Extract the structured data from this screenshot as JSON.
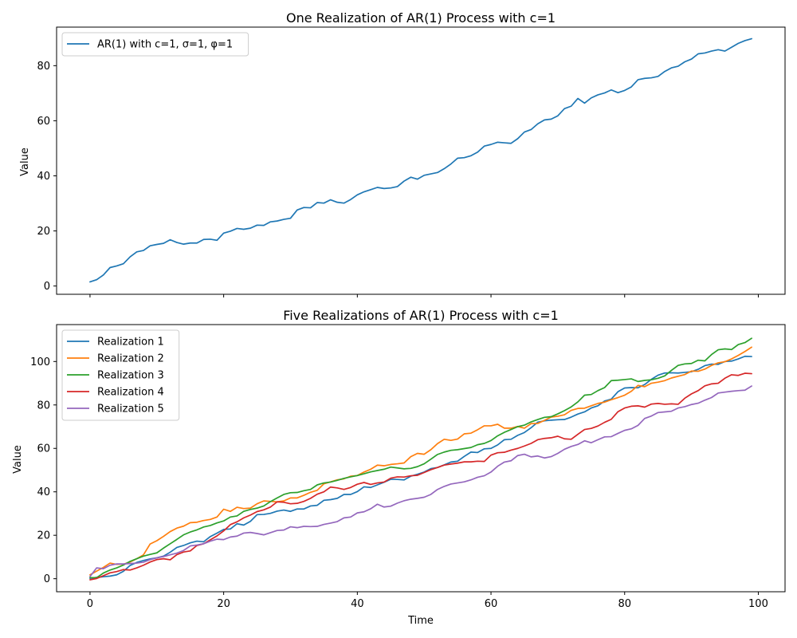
{
  "chart_data": [
    {
      "type": "line",
      "title": "One Realization of AR(1) Process with c=1",
      "xlabel": "",
      "ylabel": "Value",
      "xlim": [
        -5,
        104
      ],
      "ylim": [
        -3,
        94
      ],
      "xticks": [
        0,
        20,
        40,
        60,
        80,
        100
      ],
      "xtick_labels_visible": false,
      "yticks": [
        0,
        20,
        40,
        60,
        80
      ],
      "grid": false,
      "legend": "top-left",
      "series": [
        {
          "name": "AR(1) with c=1, σ=1, φ=1",
          "color": "#1f77b4",
          "x_start": 0,
          "values": [
            1.5,
            2.3,
            4.0,
            6.7,
            7.3,
            8.1,
            10.6,
            12.4,
            12.9,
            14.6,
            15.1,
            15.5,
            16.8,
            15.8,
            15.2,
            15.6,
            15.6,
            16.9,
            17.0,
            16.6,
            19.2,
            19.9,
            20.9,
            20.6,
            21.0,
            22.1,
            22.0,
            23.3,
            23.6,
            24.2,
            24.6,
            27.6,
            28.5,
            28.4,
            30.3,
            30.1,
            31.3,
            30.4,
            30.1,
            31.4,
            33.1,
            34.2,
            35.0,
            35.8,
            35.4,
            35.6,
            36.1,
            38.1,
            39.5,
            38.8,
            40.2,
            40.7,
            41.2,
            42.6,
            44.3,
            46.4,
            46.6,
            47.3,
            48.6,
            50.8,
            51.4,
            52.2,
            52.0,
            51.8,
            53.5,
            55.9,
            56.8,
            58.9,
            60.3,
            60.6,
            61.8,
            64.4,
            65.3,
            68.1,
            66.4,
            68.3,
            69.4,
            70.1,
            71.2,
            70.2,
            71.0,
            72.3,
            74.9,
            75.4,
            75.6,
            76.1,
            77.9,
            79.2,
            79.8,
            81.4,
            82.4,
            84.3,
            84.6,
            85.3,
            85.8,
            85.3,
            86.7,
            88.1,
            89.1,
            89.8
          ]
        }
      ]
    },
    {
      "type": "line",
      "title": "Five Realizations of AR(1) Process with c=1",
      "xlabel": "Time",
      "ylabel": "Value",
      "xlim": [
        -5,
        104
      ],
      "ylim": [
        -6,
        117
      ],
      "xticks": [
        0,
        20,
        40,
        60,
        80,
        100
      ],
      "yticks": [
        0,
        20,
        40,
        60,
        80,
        100
      ],
      "grid": false,
      "legend": "top-left",
      "series": [
        {
          "name": "Realization 1",
          "color": "#1f77b4",
          "x_start": 0,
          "values": [
            0.2,
            0.6,
            0.9,
            1.2,
            1.8,
            3.4,
            6.1,
            7.5,
            8.4,
            9.1,
            9.6,
            10.4,
            12.2,
            14.4,
            15.3,
            16.5,
            17.3,
            17.0,
            19.4,
            21.0,
            22.7,
            22.9,
            25.3,
            24.7,
            26.4,
            29.5,
            29.6,
            30.1,
            31.1,
            31.6,
            31.0,
            32.1,
            32.1,
            33.5,
            33.8,
            36.1,
            36.4,
            37.0,
            38.8,
            38.8,
            40.1,
            42.3,
            42.0,
            43.2,
            44.4,
            45.8,
            45.7,
            45.5,
            47.2,
            48.1,
            49.1,
            50.7,
            51.2,
            52.4,
            53.7,
            54.1,
            56.3,
            58.3,
            58.1,
            59.8,
            60.0,
            61.6,
            64.0,
            64.2,
            66.0,
            67.3,
            69.5,
            72.1,
            72.7,
            73.0,
            73.2,
            73.3,
            74.4,
            75.8,
            76.8,
            78.6,
            79.6,
            81.8,
            82.7,
            86.1,
            87.8,
            88.0,
            87.9,
            89.4,
            91.8,
            93.7,
            94.7,
            94.8,
            94.7,
            95.0,
            95.3,
            96.4,
            98.1,
            98.8,
            98.7,
            100.0,
            100.2,
            101.2,
            102.4,
            102.3
          ]
        },
        {
          "name": "Realization 2",
          "color": "#ff7f0e",
          "x_start": 0,
          "values": [
            1.8,
            3.5,
            5.2,
            7.2,
            6.6,
            6.7,
            7.7,
            9.2,
            11.0,
            16.0,
            17.5,
            19.5,
            21.7,
            23.3,
            24.2,
            25.8,
            26.0,
            26.8,
            27.3,
            28.4,
            32.0,
            31.0,
            32.9,
            32.3,
            32.5,
            34.5,
            35.8,
            35.6,
            35.4,
            35.8,
            37.2,
            37.2,
            38.4,
            39.8,
            40.7,
            43.7,
            44.6,
            45.5,
            46.0,
            47.2,
            47.5,
            49.1,
            50.4,
            52.3,
            52.0,
            52.6,
            52.9,
            53.3,
            56.2,
            57.7,
            57.3,
            59.4,
            62.2,
            64.2,
            63.7,
            64.3,
            66.7,
            67.0,
            68.6,
            70.4,
            70.4,
            71.1,
            69.3,
            69.3,
            70.1,
            69.3,
            71.4,
            71.5,
            72.9,
            74.4,
            74.8,
            75.5,
            77.5,
            78.4,
            78.5,
            79.6,
            80.7,
            81.3,
            82.4,
            83.4,
            84.5,
            86.3,
            89.0,
            88.4,
            90.0,
            90.5,
            91.2,
            92.4,
            93.2,
            94.0,
            95.6,
            95.5,
            96.5,
            98.2,
            99.4,
            99.9,
            101.2,
            102.8,
            104.6,
            106.6
          ]
        },
        {
          "name": "Realization 3",
          "color": "#2ca02c",
          "x_start": 0,
          "values": [
            0.5,
            0.5,
            2.6,
            4.0,
            5.0,
            6.3,
            8.0,
            9.2,
            10.4,
            11.2,
            11.9,
            14.1,
            16.1,
            18.1,
            20.2,
            21.5,
            22.5,
            23.8,
            24.5,
            25.7,
            26.6,
            28.4,
            28.9,
            31.0,
            31.9,
            32.5,
            33.5,
            35.5,
            37.2,
            38.8,
            39.6,
            39.7,
            40.5,
            41.1,
            43.2,
            44.1,
            44.5,
            45.3,
            46.2,
            46.9,
            47.5,
            48.3,
            49.2,
            49.8,
            50.4,
            51.4,
            51.0,
            50.6,
            50.8,
            51.6,
            52.9,
            55.0,
            57.2,
            58.3,
            59.1,
            59.4,
            59.9,
            60.4,
            61.7,
            62.3,
            63.6,
            65.8,
            67.4,
            68.7,
            70.0,
            70.7,
            72.2,
            73.3,
            74.3,
            74.6,
            75.9,
            77.4,
            79.1,
            81.4,
            84.5,
            84.8,
            86.6,
            88.0,
            91.2,
            91.4,
            91.7,
            92.0,
            90.8,
            91.3,
            91.6,
            92.3,
            93.4,
            95.9,
            98.2,
            98.9,
            99.1,
            100.6,
            100.3,
            103.2,
            105.4,
            105.8,
            105.5,
            107.8,
            108.7,
            110.7
          ]
        },
        {
          "name": "Realization 4",
          "color": "#d62728",
          "x_start": 0,
          "values": [
            -0.5,
            0.1,
            1.4,
            2.7,
            3.3,
            4.2,
            4.0,
            5.0,
            6.2,
            7.7,
            8.8,
            9.2,
            8.7,
            11.1,
            12.3,
            12.8,
            15.3,
            16.1,
            17.9,
            19.7,
            22.0,
            24.9,
            26.2,
            28.0,
            29.3,
            30.9,
            31.7,
            33.0,
            35.4,
            35.2,
            34.5,
            34.7,
            35.6,
            37.0,
            38.9,
            40.0,
            42.2,
            41.8,
            41.1,
            42.0,
            43.5,
            44.3,
            43.4,
            44.1,
            44.5,
            46.3,
            46.9,
            46.8,
            47.4,
            47.6,
            48.9,
            50.2,
            51.2,
            52.3,
            52.8,
            53.2,
            53.8,
            53.8,
            54.1,
            54.0,
            56.9,
            58.0,
            58.2,
            59.2,
            60.0,
            61.1,
            62.3,
            64.0,
            64.6,
            64.9,
            65.6,
            64.4,
            64.2,
            66.5,
            68.7,
            69.2,
            70.3,
            72.0,
            73.4,
            76.9,
            78.6,
            79.4,
            79.6,
            79.0,
            80.4,
            80.7,
            80.3,
            80.5,
            80.3,
            83.1,
            85.1,
            86.6,
            88.8,
            89.7,
            90.0,
            92.3,
            93.9,
            93.6,
            94.6,
            94.4
          ]
        },
        {
          "name": "Realization 5",
          "color": "#9467bd",
          "x_start": 0,
          "values": [
            1.0,
            5.0,
            4.6,
            6.2,
            6.8,
            6.8,
            7.0,
            7.2,
            7.6,
            8.8,
            9.6,
            10.2,
            11.0,
            11.8,
            13.0,
            15.1,
            15.5,
            16.1,
            17.3,
            18.2,
            18.0,
            19.2,
            19.6,
            21.0,
            21.3,
            20.8,
            20.2,
            21.2,
            22.2,
            22.4,
            23.9,
            23.5,
            24.1,
            24.0,
            24.1,
            25.0,
            25.6,
            26.3,
            28.0,
            28.4,
            30.3,
            30.8,
            32.2,
            34.3,
            33.0,
            33.4,
            34.8,
            35.9,
            36.6,
            37.0,
            37.5,
            38.8,
            41.1,
            42.5,
            43.6,
            44.1,
            44.6,
            45.5,
            46.7,
            47.4,
            49.1,
            51.8,
            53.7,
            54.3,
            56.7,
            57.3,
            56.1,
            56.5,
            55.6,
            56.2,
            57.7,
            59.6,
            60.9,
            61.8,
            63.5,
            62.6,
            64.0,
            65.3,
            65.4,
            66.9,
            68.3,
            69.0,
            70.6,
            73.8,
            74.9,
            76.5,
            76.8,
            77.1,
            78.6,
            79.2,
            80.2,
            80.8,
            82.2,
            83.4,
            85.5,
            85.9,
            86.3,
            86.6,
            86.8,
            88.7
          ]
        }
      ]
    }
  ]
}
